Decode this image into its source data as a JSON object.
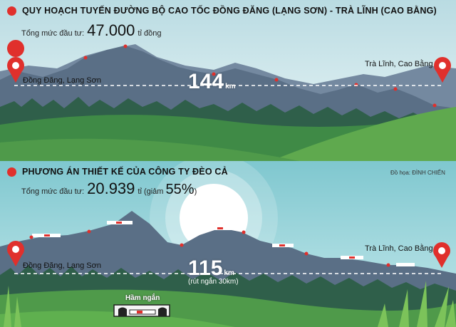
{
  "top": {
    "title": "QUY HOẠCH TUYẾN ĐƯỜNG BỘ CAO TỐC ĐỒNG ĐĂNG (LẠNG SƠN) - TRÀ LĨNH (CAO BẰNG)",
    "invest_prefix": "Tổng mức đầu tư:",
    "invest_value": "47.000",
    "invest_unit": "tỉ đồng",
    "start_place": "Đồng Đăng, Lạng Sơn",
    "end_place": "Trà Lĩnh, Cao Bằng",
    "distance": "144",
    "distance_unit": "km"
  },
  "bottom": {
    "title": "PHƯƠNG ÁN THIẾT KẾ CỦA CÔNG TY ĐÈO CẢ",
    "credit": "Đồ họa: ĐÌNH CHIẾN",
    "invest_prefix": "Tổng mức đầu tư:",
    "invest_value": "20.939",
    "invest_unit": "tỉ (giảm",
    "invest_reduction": "55%",
    "invest_close": ")",
    "start_place": "Đồng Đăng, Lạng Sơn",
    "end_place": "Trà Lĩnh, Cao Bằng",
    "distance": "115",
    "distance_unit": "km",
    "distance_note": "(rút ngắn 30km)",
    "tunnel_label": "Hầm ngắn"
  },
  "colors": {
    "accent_red": "#e0302c",
    "mountain": "#5a6f86",
    "forest": "#2f6b4a",
    "grass": "#4f9a4a"
  }
}
